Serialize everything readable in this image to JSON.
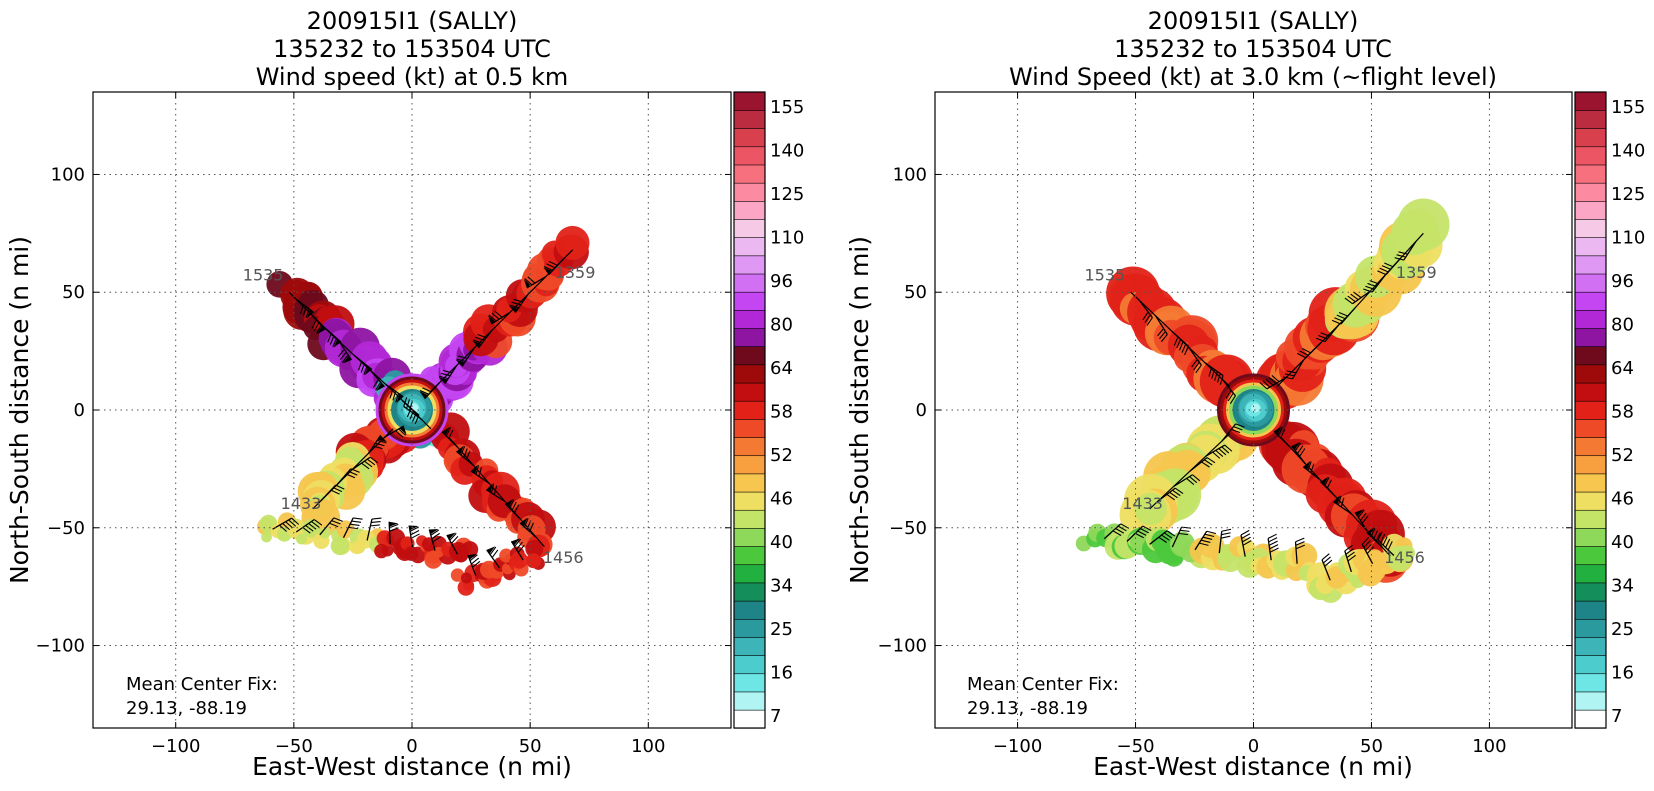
{
  "colorbar": {
    "tick_labels": [
      "155",
      "140",
      "125",
      "110",
      "96",
      "80",
      "64",
      "58",
      "52",
      "46",
      "40",
      "34",
      "25",
      "16",
      "7"
    ],
    "colors": [
      "#ffffff",
      "#b0f4f4",
      "#6ee6e6",
      "#4ccccc",
      "#3cb4b8",
      "#2a9a9e",
      "#1e8488",
      "#148e5a",
      "#22b040",
      "#4cc83c",
      "#8ed85a",
      "#c4e468",
      "#eede62",
      "#f6c64e",
      "#f8a040",
      "#f47a34",
      "#ee4a28",
      "#e22218",
      "#c20e10",
      "#9e0a0a",
      "#6e0a1c",
      "#8e14a2",
      "#b228d6",
      "#c446f2",
      "#d270f4",
      "#df98f4",
      "#ecb8f2",
      "#f6cae6",
      "#fca6c6",
      "#fc8aa0",
      "#f6707e",
      "#ec5664",
      "#d8404e",
      "#bc2c40",
      "#9a1430"
    ]
  },
  "chart_data": [
    {
      "type": "heatmap",
      "title_line1": "200915I1 (SALLY)",
      "title_line2": "135232 to 153504 UTC",
      "title_line3": "Wind speed (kt) at 0.5 km",
      "xlabel": "East-West distance (n mi)",
      "ylabel": "North-South distance (n mi)",
      "xlim": [
        -135,
        135
      ],
      "ylim": [
        -135,
        135
      ],
      "xticks": [
        -100,
        -50,
        0,
        50,
        100
      ],
      "yticks": [
        -100,
        -50,
        0,
        50,
        100
      ],
      "grid": true,
      "annotation_line1": "Mean Center Fix:",
      "annotation_line2": "29.13, -88.19",
      "track_labels": [
        {
          "text": "1535",
          "x": -63,
          "y": 55
        },
        {
          "text": "1359",
          "x": 69,
          "y": 56
        },
        {
          "text": "1433",
          "x": -47,
          "y": -42
        },
        {
          "text": "1456",
          "x": 64,
          "y": -65
        }
      ],
      "legs": [
        {
          "from": [
            -52,
            50
          ],
          "to": [
            -34,
            32
          ],
          "band": "high"
        },
        {
          "from": [
            -34,
            32
          ],
          "to": [
            -8,
            8
          ],
          "band": "purple"
        },
        {
          "from": [
            -8,
            8
          ],
          "to": [
            8,
            -8
          ],
          "band": "eye"
        },
        {
          "from": [
            8,
            8
          ],
          "to": [
            30,
            30
          ],
          "band": "purple"
        },
        {
          "from": [
            30,
            30
          ],
          "to": [
            68,
            68
          ],
          "band": "red"
        },
        {
          "from": [
            -8,
            -8
          ],
          "to": [
            -22,
            -22
          ],
          "band": "red"
        },
        {
          "from": [
            -22,
            -22
          ],
          "to": [
            -42,
            -42
          ],
          "band": "yellow"
        },
        {
          "from": [
            16,
            -12
          ],
          "to": [
            56,
            -58
          ],
          "band": "red"
        }
      ],
      "swath": [
        {
          "from": [
            -64,
            -50
          ],
          "to": [
            -14,
            -56
          ],
          "band": "yellow"
        },
        {
          "from": [
            -14,
            -56
          ],
          "to": [
            24,
            -62
          ],
          "band": "red"
        },
        {
          "from": [
            22,
            -72
          ],
          "to": [
            52,
            -62
          ],
          "band": "red"
        }
      ]
    },
    {
      "type": "heatmap",
      "title_line1": "200915I1 (SALLY)",
      "title_line2": "135232 to 153504 UTC",
      "title_line3": "Wind Speed (kt) at 3.0 km (~flight level)",
      "xlabel": "East-West distance (n mi)",
      "ylabel": "North-South distance (n mi)",
      "xlim": [
        -135,
        135
      ],
      "ylim": [
        -135,
        135
      ],
      "xticks": [
        -100,
        -50,
        0,
        50,
        100
      ],
      "yticks": [
        -100,
        -50,
        0,
        50,
        100
      ],
      "grid": true,
      "annotation_line1": "Mean Center Fix:",
      "annotation_line2": "29.13, -88.19",
      "track_labels": [
        {
          "text": "1535",
          "x": -63,
          "y": 55
        },
        {
          "text": "1359",
          "x": 69,
          "y": 56
        },
        {
          "text": "1433",
          "x": -47,
          "y": -42
        },
        {
          "text": "1456",
          "x": 64,
          "y": -65
        }
      ],
      "legs": [
        {
          "from": [
            -52,
            50
          ],
          "to": [
            -10,
            10
          ],
          "band": "orange"
        },
        {
          "from": [
            10,
            10
          ],
          "to": [
            40,
            40
          ],
          "band": "orange"
        },
        {
          "from": [
            40,
            40
          ],
          "to": [
            72,
            75
          ],
          "band": "yellow"
        },
        {
          "from": [
            -10,
            -10
          ],
          "to": [
            -44,
            -42
          ],
          "band": "yellow"
        },
        {
          "from": [
            12,
            -12
          ],
          "to": [
            58,
            -62
          ],
          "band": "red"
        }
      ],
      "swath": [
        {
          "from": [
            -68,
            -54
          ],
          "to": [
            -20,
            -60
          ],
          "band": "lightgreen"
        },
        {
          "from": [
            -20,
            -60
          ],
          "to": [
            24,
            -66
          ],
          "band": "yellow"
        },
        {
          "from": [
            28,
            -74
          ],
          "to": [
            64,
            -60
          ],
          "band": "yellow"
        }
      ]
    }
  ]
}
